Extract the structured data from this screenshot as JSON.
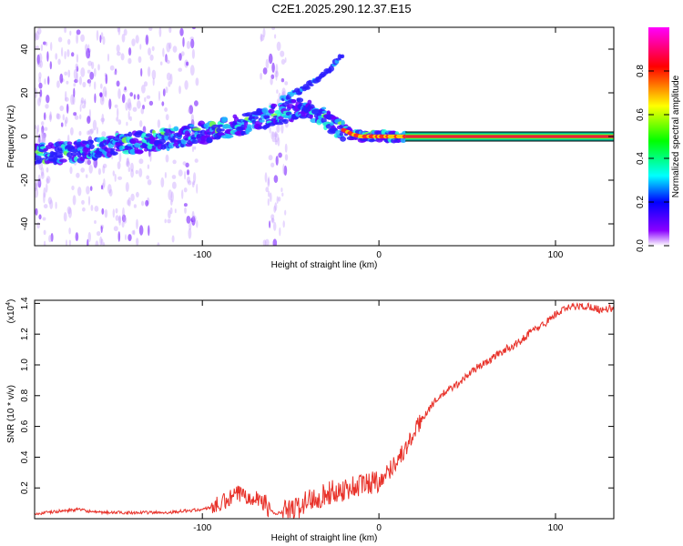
{
  "title": "C2E1.2025.290.12.37.E15",
  "chart_data": [
    {
      "type": "heatmap",
      "xlabel": "Height of straight line (km)",
      "ylabel": "Frequency (Hz)",
      "xlim": [
        -195,
        133
      ],
      "ylim": [
        -50,
        50
      ],
      "xticks": [
        -100,
        0,
        100
      ],
      "yticks": [
        40,
        20,
        0,
        -20,
        -40
      ],
      "colorbar": {
        "label": "Normalized spectral amplitude",
        "range": [
          0,
          1
        ],
        "ticks": [
          "0.0",
          "0.2",
          "0.4",
          "0.6",
          "0.8"
        ],
        "colors": [
          "#ffffff",
          "#8a00ff",
          "#0000ff",
          "#00ffff",
          "#00ff00",
          "#ffff00",
          "#ff0000",
          "#ff00ff"
        ]
      },
      "ridge": {
        "x": [
          -195,
          -170,
          -150,
          -130,
          -110,
          -90,
          -70,
          -58,
          -50,
          -42,
          -36,
          -30,
          -25,
          -20,
          -15,
          -10,
          -5,
          0,
          5,
          10,
          15,
          133
        ],
        "y": [
          -8,
          -7,
          -4,
          -2,
          0,
          3,
          7,
          10,
          12,
          13,
          11,
          8,
          5,
          3,
          1,
          0,
          0,
          0,
          0,
          0,
          0,
          0
        ]
      },
      "branch": {
        "x": [
          -55,
          -45,
          -35,
          -25,
          -20
        ],
        "y": [
          17,
          21,
          26,
          33,
          38
        ]
      },
      "flat_line": {
        "x_start": 15,
        "x_end": 133,
        "y": 0
      }
    },
    {
      "type": "line",
      "xlabel": "Height of straight line (km)",
      "ylabel": "SNR (10 * v/v)",
      "y_multiplier": "(x10",
      "y_multiplier_exp": "4",
      "y_multiplier_close": ")",
      "xlim": [
        -195,
        133
      ],
      "ylim": [
        0,
        1.42
      ],
      "xticks": [
        -100,
        0,
        100
      ],
      "yticks": [
        "0.2",
        "0.4",
        "0.6",
        "0.8",
        "1.0",
        "1.2",
        "1.4"
      ],
      "color": "#e8322a",
      "x": [
        -195,
        -180,
        -170,
        -160,
        -140,
        -120,
        -100,
        -90,
        -80,
        -72,
        -65,
        -60,
        -50,
        -45,
        -40,
        -30,
        -20,
        -10,
        0,
        5,
        10,
        15,
        20,
        25,
        30,
        35,
        40,
        45,
        50,
        55,
        60,
        65,
        70,
        75,
        80,
        85,
        90,
        95,
        100,
        105,
        110,
        115,
        120,
        125,
        133
      ],
      "y": [
        0.03,
        0.05,
        0.06,
        0.04,
        0.04,
        0.04,
        0.06,
        0.09,
        0.16,
        0.15,
        0.11,
        0.03,
        0.05,
        0.08,
        0.12,
        0.16,
        0.19,
        0.22,
        0.25,
        0.3,
        0.38,
        0.45,
        0.56,
        0.66,
        0.74,
        0.8,
        0.84,
        0.88,
        0.93,
        0.98,
        1.01,
        1.05,
        1.09,
        1.12,
        1.15,
        1.21,
        1.24,
        1.28,
        1.33,
        1.36,
        1.38,
        1.38,
        1.38,
        1.36,
        1.37
      ]
    }
  ]
}
